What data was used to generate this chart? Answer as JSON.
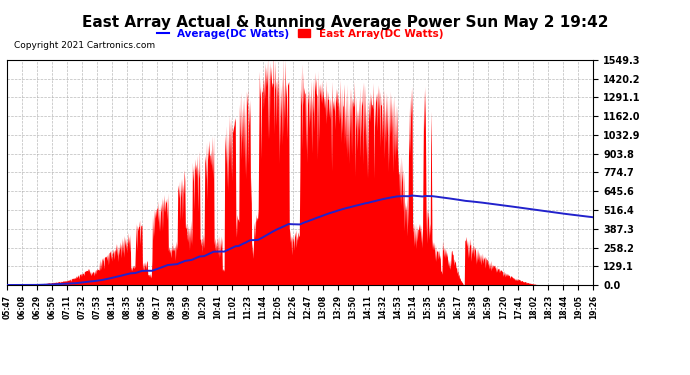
{
  "title": "East Array Actual & Running Average Power Sun May 2 19:42",
  "copyright": "Copyright 2021 Cartronics.com",
  "legend_avg": "Average(DC Watts)",
  "legend_east": "East Array(DC Watts)",
  "yticks": [
    0.0,
    129.1,
    258.2,
    387.3,
    516.4,
    645.6,
    774.7,
    903.8,
    1032.9,
    1162.0,
    1291.1,
    1420.2,
    1549.3
  ],
  "ymax": 1549.3,
  "ymin": 0.0,
  "fill_color": "#FF0000",
  "line_color": "#2222CC",
  "bg_color": "#FFFFFF",
  "grid_color": "#AAAAAA",
  "title_color": "#000000",
  "avg_label_color": "#0000FF",
  "east_label_color": "#FF0000",
  "xtick_labels": [
    "05:47",
    "06:08",
    "06:29",
    "06:50",
    "07:11",
    "07:32",
    "07:53",
    "08:14",
    "08:35",
    "08:56",
    "09:17",
    "09:38",
    "09:59",
    "10:20",
    "10:41",
    "11:02",
    "11:23",
    "11:44",
    "12:05",
    "12:26",
    "12:47",
    "13:08",
    "13:29",
    "13:50",
    "14:11",
    "14:32",
    "14:53",
    "15:14",
    "15:35",
    "15:56",
    "16:17",
    "16:38",
    "16:59",
    "17:20",
    "17:41",
    "18:02",
    "18:23",
    "18:44",
    "19:05",
    "19:26"
  ],
  "n_points": 1000,
  "seed": 123
}
